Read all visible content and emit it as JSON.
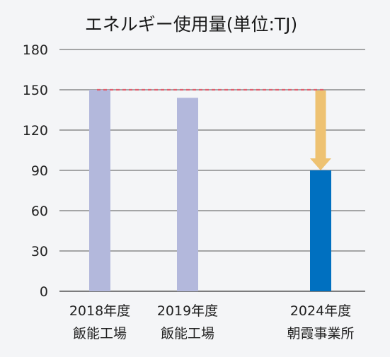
{
  "chart_data": {
    "type": "bar",
    "title": "エネルギー使用量(単位:TJ)",
    "categories": [
      {
        "line1": "2018年度",
        "line2": "飯能工場"
      },
      {
        "line1": "2019年度",
        "line2": "飯能工場"
      },
      {
        "line1": "2024年度",
        "line2": "朝霞事業所"
      }
    ],
    "values": [
      150,
      144,
      90
    ],
    "bar_colors": [
      "#b3b8dc",
      "#b3b8dc",
      "#0070c0"
    ],
    "ylim": [
      0,
      180
    ],
    "yticks": [
      {
        "value": 0,
        "label": "0"
      },
      {
        "value": 30,
        "label": "30"
      },
      {
        "value": 60,
        "label": "60"
      },
      {
        "value": 90,
        "label": "90"
      },
      {
        "value": 120,
        "label": "120"
      },
      {
        "value": 150,
        "label": "150"
      },
      {
        "value": 180,
        "label": "180"
      }
    ],
    "grid": true,
    "reference_line": {
      "value": 150,
      "color": "#e06070",
      "style": "dashed"
    },
    "reduction_arrow": {
      "from": 150,
      "to": 90,
      "color": "#eec272"
    },
    "gridline_color": "#555555"
  }
}
